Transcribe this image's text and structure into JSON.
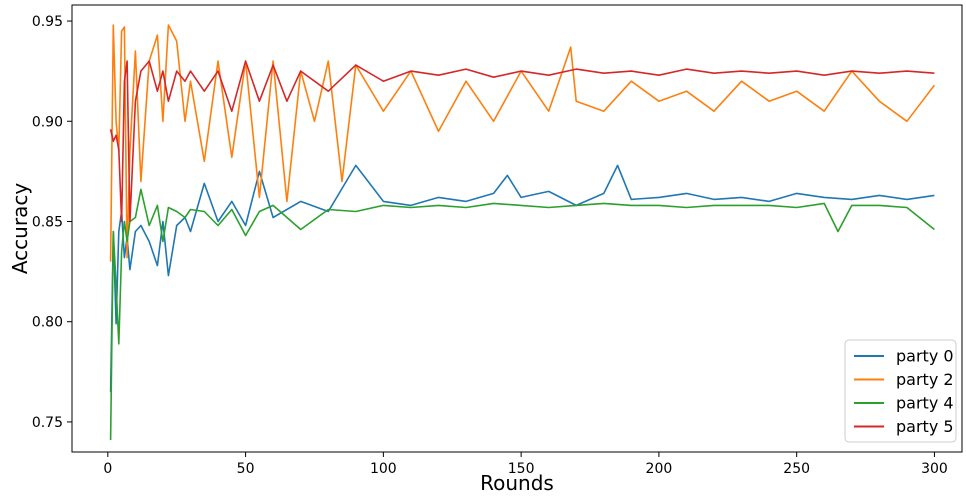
{
  "chart_data": {
    "type": "line",
    "title": "",
    "xlabel": "Rounds",
    "ylabel": "Accuracy",
    "xlim": [
      -13,
      310
    ],
    "ylim": [
      0.735,
      0.958
    ],
    "xticks": [
      0,
      50,
      100,
      150,
      200,
      250,
      300
    ],
    "yticks": [
      0.75,
      0.8,
      0.85,
      0.9,
      0.95
    ],
    "ytick_labels": [
      "0.75",
      "0.80",
      "0.85",
      "0.90",
      "0.95"
    ],
    "grid": false,
    "legend_position": "bottom-right",
    "series": [
      {
        "name": "party 0",
        "color": "#1f77b4",
        "x": [
          1,
          2,
          3,
          4,
          5,
          6,
          7,
          8,
          10,
          12,
          15,
          18,
          20,
          22,
          25,
          28,
          30,
          35,
          40,
          45,
          50,
          55,
          60,
          70,
          80,
          90,
          100,
          110,
          120,
          130,
          140,
          145,
          150,
          160,
          170,
          180,
          185,
          190,
          200,
          210,
          220,
          230,
          240,
          250,
          260,
          270,
          280,
          290,
          300
        ],
        "y": [
          0.765,
          0.845,
          0.799,
          0.845,
          0.855,
          0.832,
          0.842,
          0.826,
          0.845,
          0.848,
          0.84,
          0.828,
          0.85,
          0.823,
          0.848,
          0.852,
          0.845,
          0.869,
          0.85,
          0.86,
          0.848,
          0.875,
          0.852,
          0.86,
          0.855,
          0.878,
          0.86,
          0.858,
          0.862,
          0.86,
          0.864,
          0.873,
          0.862,
          0.865,
          0.858,
          0.864,
          0.878,
          0.861,
          0.862,
          0.864,
          0.861,
          0.862,
          0.86,
          0.864,
          0.862,
          0.861,
          0.863,
          0.861,
          0.863
        ]
      },
      {
        "name": "party 2",
        "color": "#ff7f0e",
        "x": [
          1,
          2,
          3,
          4,
          5,
          6,
          7,
          8,
          10,
          12,
          15,
          18,
          20,
          22,
          25,
          28,
          30,
          35,
          40,
          45,
          50,
          55,
          60,
          65,
          70,
          75,
          80,
          85,
          90,
          100,
          110,
          120,
          130,
          140,
          150,
          160,
          168,
          170,
          180,
          190,
          200,
          210,
          220,
          230,
          240,
          250,
          260,
          270,
          280,
          290,
          300
        ],
        "y": [
          0.83,
          0.948,
          0.9,
          0.885,
          0.945,
          0.947,
          0.832,
          0.885,
          0.935,
          0.87,
          0.93,
          0.943,
          0.9,
          0.948,
          0.94,
          0.9,
          0.92,
          0.88,
          0.93,
          0.882,
          0.93,
          0.862,
          0.93,
          0.86,
          0.925,
          0.9,
          0.93,
          0.87,
          0.928,
          0.905,
          0.925,
          0.895,
          0.92,
          0.9,
          0.925,
          0.905,
          0.937,
          0.91,
          0.905,
          0.92,
          0.91,
          0.915,
          0.905,
          0.92,
          0.91,
          0.915,
          0.905,
          0.925,
          0.91,
          0.9,
          0.918
        ]
      },
      {
        "name": "party 4",
        "color": "#2ca02c",
        "x": [
          1,
          2,
          3,
          4,
          5,
          6,
          7,
          8,
          10,
          12,
          15,
          18,
          20,
          22,
          25,
          28,
          30,
          35,
          40,
          45,
          50,
          55,
          60,
          70,
          80,
          90,
          100,
          110,
          120,
          130,
          140,
          150,
          160,
          170,
          180,
          190,
          200,
          210,
          220,
          230,
          240,
          250,
          260,
          265,
          270,
          280,
          290,
          300
        ],
        "y": [
          0.741,
          0.845,
          0.818,
          0.789,
          0.835,
          0.85,
          0.84,
          0.85,
          0.852,
          0.866,
          0.848,
          0.858,
          0.84,
          0.857,
          0.855,
          0.852,
          0.856,
          0.855,
          0.848,
          0.856,
          0.843,
          0.855,
          0.858,
          0.846,
          0.856,
          0.855,
          0.858,
          0.857,
          0.858,
          0.857,
          0.859,
          0.858,
          0.857,
          0.858,
          0.859,
          0.858,
          0.858,
          0.857,
          0.858,
          0.858,
          0.858,
          0.857,
          0.859,
          0.845,
          0.858,
          0.858,
          0.857,
          0.846
        ]
      },
      {
        "name": "party 5",
        "color": "#d62728",
        "x": [
          1,
          2,
          3,
          4,
          5,
          6,
          7,
          8,
          10,
          12,
          15,
          18,
          20,
          22,
          25,
          28,
          30,
          35,
          40,
          45,
          50,
          55,
          60,
          65,
          70,
          80,
          90,
          100,
          110,
          120,
          130,
          140,
          150,
          160,
          170,
          180,
          190,
          200,
          210,
          220,
          230,
          240,
          250,
          260,
          270,
          280,
          290,
          300
        ],
        "y": [
          0.896,
          0.89,
          0.893,
          0.886,
          0.85,
          0.92,
          0.93,
          0.85,
          0.91,
          0.925,
          0.93,
          0.915,
          0.925,
          0.91,
          0.925,
          0.92,
          0.925,
          0.915,
          0.925,
          0.905,
          0.93,
          0.91,
          0.928,
          0.91,
          0.925,
          0.915,
          0.928,
          0.92,
          0.925,
          0.923,
          0.926,
          0.922,
          0.925,
          0.923,
          0.926,
          0.924,
          0.925,
          0.923,
          0.926,
          0.924,
          0.925,
          0.924,
          0.925,
          0.923,
          0.925,
          0.924,
          0.925,
          0.924
        ]
      }
    ]
  }
}
